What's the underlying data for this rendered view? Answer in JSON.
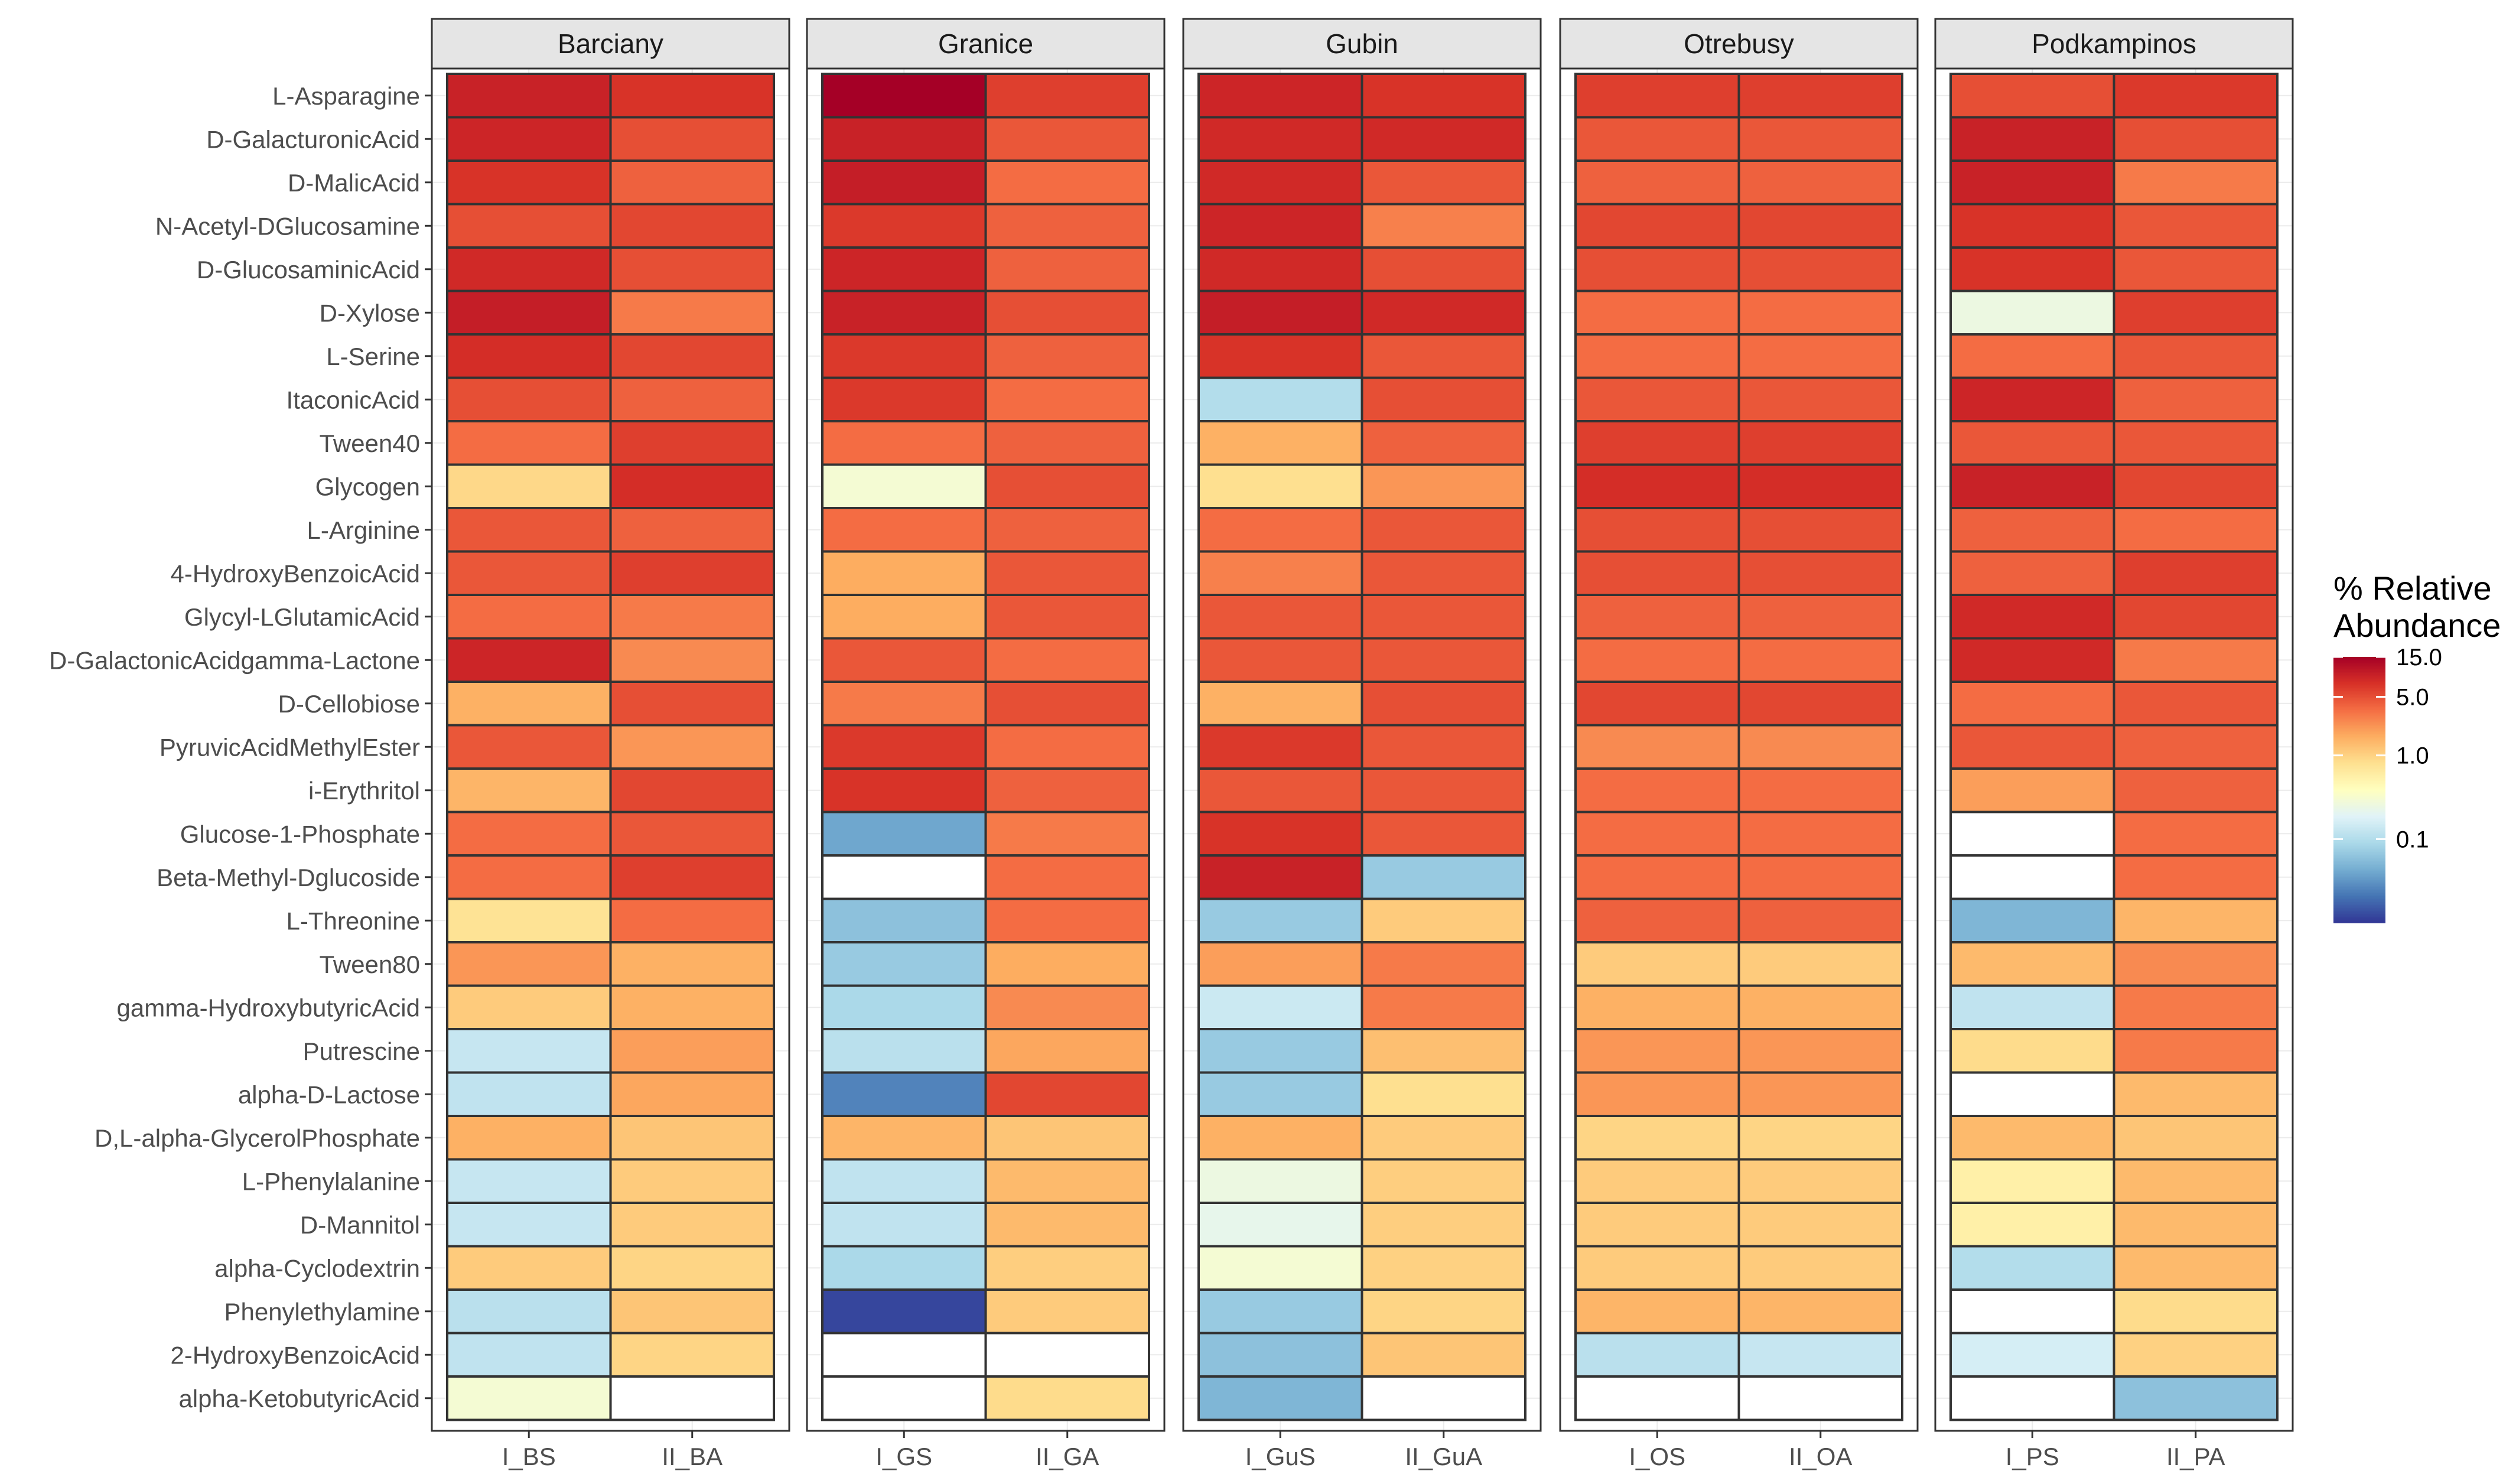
{
  "chart_data": {
    "type": "heatmap",
    "title": "",
    "xlabel": "",
    "ylabel": "",
    "rows": [
      "L-Asparagine",
      "D-GalacturonicAcid",
      "D-MalicAcid",
      "N-Acetyl-DGlucosamine",
      "D-GlucosaminicAcid",
      "D-Xylose",
      "L-Serine",
      "ItaconicAcid",
      "Tween40",
      "Glycogen",
      "L-Arginine",
      "4-HydroxyBenzoicAcid",
      "Glycyl-LGlutamicAcid",
      "D-GalactonicAcidgamma-Lactone",
      "D-Cellobiose",
      "PyruvicAcidMethylEster",
      "i-Erythritol",
      "Glucose-1-Phosphate",
      "Beta-Methyl-Dglucoside",
      "L-Threonine",
      "Tween80",
      "gamma-HydroxybutyricAcid",
      "Putrescine",
      "alpha-D-Lactose",
      "D,L-alpha-GlycerolPhosphate",
      "L-Phenylalanine",
      "D-Mannitol",
      "alpha-Cyclodextrin",
      "Phenylethylamine",
      "2-HydroxyBenzoicAcid",
      "alpha-KetobutyricAcid"
    ],
    "facets": [
      {
        "name": "Barciany",
        "columns": [
          "I_BS",
          "II_BA"
        ],
        "values": [
          [
            9,
            7
          ],
          [
            8.5,
            5
          ],
          [
            7,
            4
          ],
          [
            5,
            5.5
          ],
          [
            8,
            5
          ],
          [
            9.5,
            3
          ],
          [
            7.5,
            5.5
          ],
          [
            5,
            4
          ],
          [
            3.5,
            6
          ],
          [
            0.9,
            7.5
          ],
          [
            4.5,
            4
          ],
          [
            4.5,
            6
          ],
          [
            3.5,
            3
          ],
          [
            8.5,
            2.5
          ],
          [
            1.6,
            5
          ],
          [
            4.5,
            2.2
          ],
          [
            1.5,
            5.5
          ],
          [
            3.5,
            4.5
          ],
          [
            3.5,
            6
          ],
          [
            0.75,
            3.5
          ],
          [
            2.2,
            1.6
          ],
          [
            1.1,
            1.6
          ],
          [
            0.13,
            2
          ],
          [
            0.12,
            1.8
          ],
          [
            1.6,
            1.2
          ],
          [
            0.13,
            1.1
          ],
          [
            0.13,
            1.1
          ],
          [
            1.1,
            0.95
          ],
          [
            0.11,
            1.2
          ],
          [
            0.12,
            0.95
          ],
          [
            0.3,
            null
          ]
        ]
      },
      {
        "name": "Granice",
        "columns": [
          "I_GS",
          "II_GA"
        ],
        "values": [
          [
            15,
            6
          ],
          [
            9,
            4.5
          ],
          [
            9.5,
            3.5
          ],
          [
            6.5,
            4
          ],
          [
            8.5,
            4
          ],
          [
            9,
            5
          ],
          [
            6.5,
            4
          ],
          [
            6.5,
            3.5
          ],
          [
            3.5,
            4
          ],
          [
            0.3,
            5
          ],
          [
            3.5,
            4
          ],
          [
            1.7,
            4.5
          ],
          [
            1.7,
            4.5
          ],
          [
            4.5,
            3.5
          ],
          [
            3,
            5
          ],
          [
            6.5,
            3.5
          ],
          [
            7,
            4
          ],
          [
            0.04,
            3
          ],
          [
            null,
            3.5
          ],
          [
            0.06,
            3.5
          ],
          [
            0.07,
            1.7
          ],
          [
            0.09,
            2.5
          ],
          [
            0.11,
            1.8
          ],
          [
            0.025,
            5.5
          ],
          [
            1.5,
            1.2
          ],
          [
            0.12,
            1.4
          ],
          [
            0.12,
            1.4
          ],
          [
            0.09,
            1.05
          ],
          [
            0.012,
            1.1
          ],
          [
            null,
            null
          ],
          [
            null,
            0.85
          ]
        ]
      },
      {
        "name": "Gubin",
        "columns": [
          "I_GuS",
          "II_GuA"
        ],
        "values": [
          [
            8.5,
            7
          ],
          [
            8,
            8
          ],
          [
            8,
            4.5
          ],
          [
            8.5,
            2.8
          ],
          [
            8,
            5
          ],
          [
            9.5,
            8
          ],
          [
            7,
            4.5
          ],
          [
            0.1,
            5
          ],
          [
            1.6,
            4
          ],
          [
            0.8,
            2.2
          ],
          [
            3.5,
            4.5
          ],
          [
            2.8,
            4.5
          ],
          [
            4.5,
            4.5
          ],
          [
            4.5,
            4.5
          ],
          [
            1.6,
            5
          ],
          [
            6.5,
            4.5
          ],
          [
            4.5,
            4.5
          ],
          [
            7,
            4.5
          ],
          [
            9,
            0.07
          ],
          [
            0.07,
            1.1
          ],
          [
            2,
            3
          ],
          [
            0.14,
            3
          ],
          [
            0.07,
            1.3
          ],
          [
            0.07,
            0.8
          ],
          [
            1.6,
            1.1
          ],
          [
            0.25,
            1.05
          ],
          [
            0.22,
            1.05
          ],
          [
            0.3,
            1.0
          ],
          [
            0.07,
            0.95
          ],
          [
            0.06,
            1.2
          ],
          [
            0.05,
            null
          ]
        ]
      },
      {
        "name": "Otrebusy",
        "columns": [
          "I_OS",
          "II_OA"
        ],
        "values": [
          [
            6,
            6
          ],
          [
            4.5,
            4.5
          ],
          [
            4,
            4
          ],
          [
            5.5,
            5.5
          ],
          [
            5,
            5
          ],
          [
            3.5,
            3.5
          ],
          [
            3.5,
            3.5
          ],
          [
            4.5,
            4.5
          ],
          [
            6,
            6
          ],
          [
            7.5,
            7.5
          ],
          [
            5,
            5
          ],
          [
            5,
            5
          ],
          [
            4,
            4
          ],
          [
            3.5,
            3.5
          ],
          [
            5.5,
            5.5
          ],
          [
            2.5,
            2.5
          ],
          [
            3.5,
            3.5
          ],
          [
            3.5,
            3.5
          ],
          [
            3.5,
            3.5
          ],
          [
            4,
            4
          ],
          [
            1.1,
            1.1
          ],
          [
            1.6,
            1.6
          ],
          [
            2.2,
            2.2
          ],
          [
            2.2,
            2.2
          ],
          [
            0.95,
            0.95
          ],
          [
            1.1,
            1.1
          ],
          [
            1.1,
            1.1
          ],
          [
            1.1,
            1.1
          ],
          [
            1.5,
            1.5
          ],
          [
            0.11,
            0.13
          ],
          [
            null,
            null
          ]
        ]
      },
      {
        "name": "Podkampinos",
        "columns": [
          "I_PS",
          "II_PA"
        ],
        "values": [
          [
            5,
            6.5
          ],
          [
            9,
            5
          ],
          [
            9,
            3
          ],
          [
            7,
            4.5
          ],
          [
            7,
            4.5
          ],
          [
            0.25,
            6
          ],
          [
            3.5,
            4.5
          ],
          [
            8.5,
            4
          ],
          [
            4.5,
            4.5
          ],
          [
            9,
            5.5
          ],
          [
            4,
            3.5
          ],
          [
            4,
            6
          ],
          [
            8,
            5.5
          ],
          [
            8,
            3
          ],
          [
            3.5,
            4.5
          ],
          [
            4.5,
            4
          ],
          [
            2,
            4
          ],
          [
            null,
            3.5
          ],
          [
            null,
            3.5
          ],
          [
            0.05,
            1.5
          ],
          [
            1.4,
            2.5
          ],
          [
            0.12,
            3
          ],
          [
            0.85,
            3
          ],
          [
            null,
            1.4
          ],
          [
            1.4,
            1.2
          ],
          [
            0.55,
            1.4
          ],
          [
            0.55,
            1.4
          ],
          [
            0.1,
            1.4
          ],
          [
            null,
            0.85
          ],
          [
            0.16,
            1.0
          ],
          [
            null,
            0.06
          ]
        ]
      }
    ],
    "color_scale": {
      "type": "log",
      "min": 0.01,
      "max": 15.0,
      "ticks": [
        15.0,
        5.0,
        1.0,
        0.1
      ],
      "tick_labels": [
        "15.0",
        "5.0",
        "1.0",
        "0.1"
      ],
      "palette": "RdYlBu reversed",
      "na_color": "#ffffff"
    },
    "legend": {
      "title_line1": "% Relative",
      "title_line2": "Abundance",
      "position": "right"
    }
  }
}
